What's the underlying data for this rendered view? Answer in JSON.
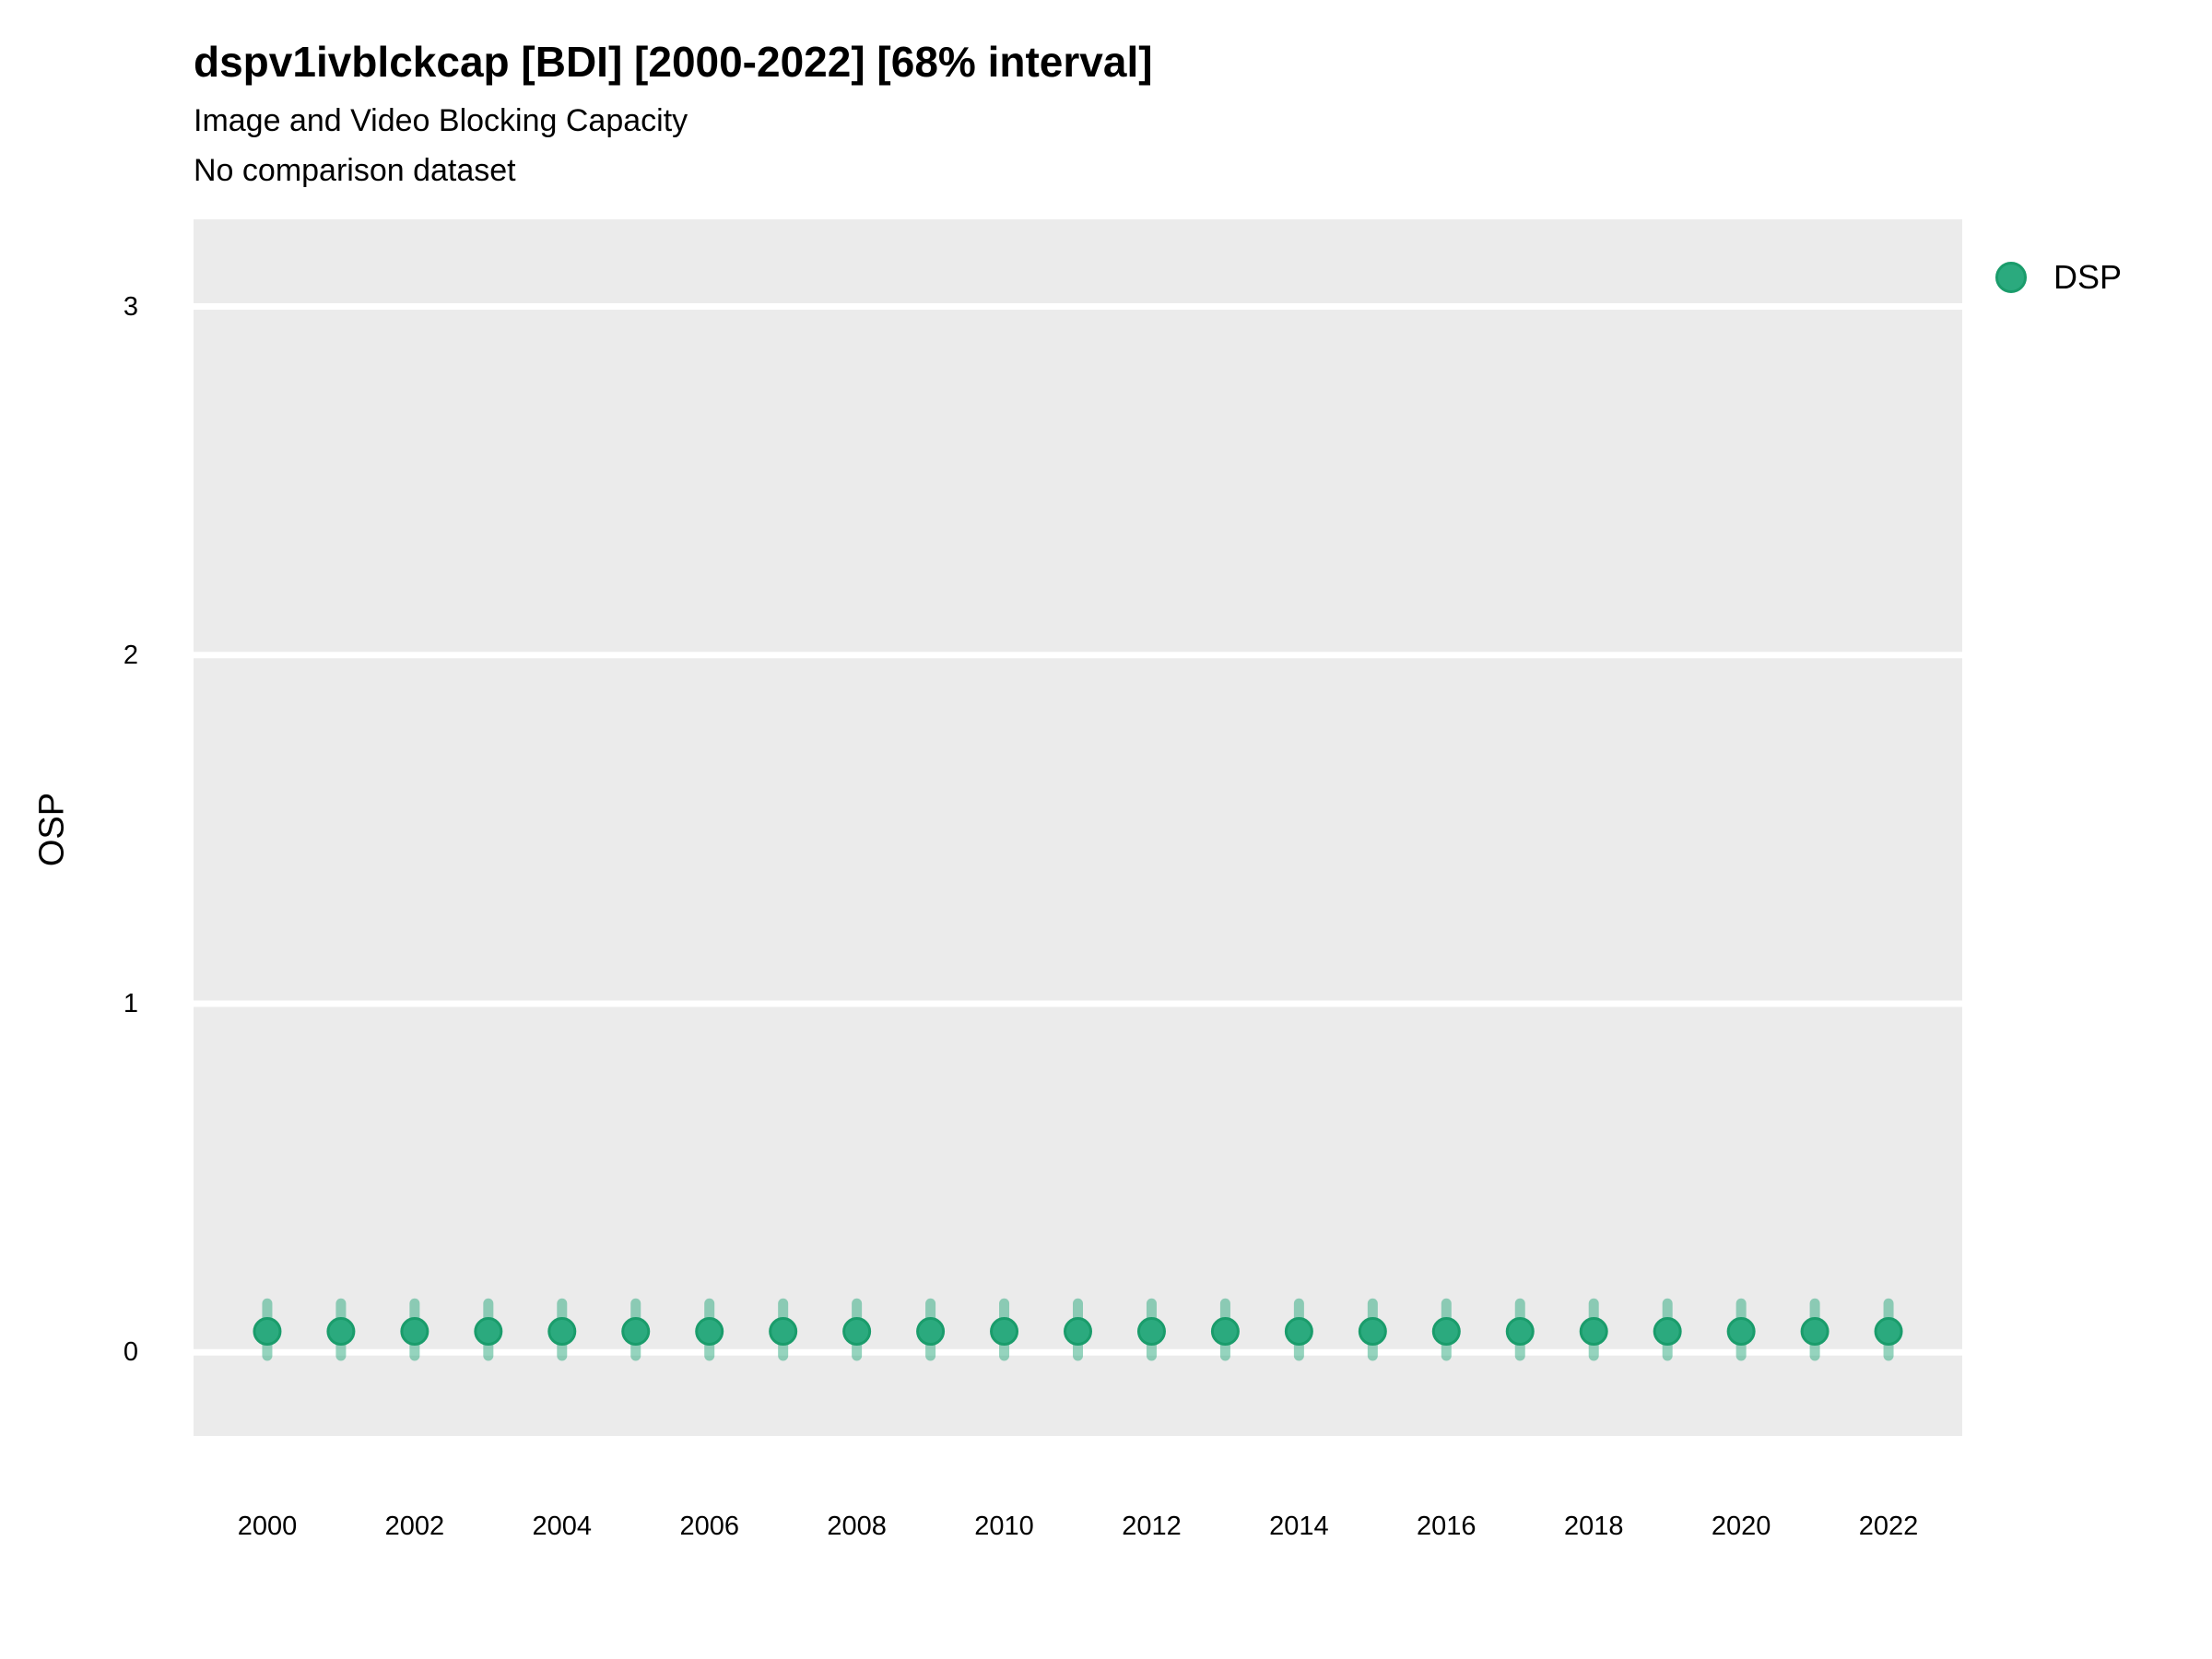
{
  "header": {
    "title": "dspv1ivblckcap [BDI] [2000-2022] [68% interval]",
    "subtitle": "Image and Video Blocking Capacity",
    "note": "No comparison dataset"
  },
  "legend": {
    "position": "right-top",
    "items": [
      {
        "label": "DSP",
        "color": "#2BAA7E"
      }
    ]
  },
  "chart_data": {
    "type": "scatter",
    "title": "dspv1ivblckcap [BDI] [2000-2022] [68% interval]",
    "subtitle": "Image and Video Blocking Capacity",
    "note": "No comparison dataset",
    "interval_label": "68% interval",
    "xlabel": "",
    "ylabel": "OSP",
    "x": [
      2000,
      2001,
      2002,
      2003,
      2004,
      2005,
      2006,
      2007,
      2008,
      2009,
      2010,
      2011,
      2012,
      2013,
      2014,
      2015,
      2016,
      2017,
      2018,
      2019,
      2020,
      2021,
      2022
    ],
    "series": [
      {
        "name": "DSP",
        "values": [
          0.06,
          0.06,
          0.06,
          0.06,
          0.06,
          0.06,
          0.06,
          0.06,
          0.06,
          0.06,
          0.06,
          0.06,
          0.06,
          0.06,
          0.06,
          0.06,
          0.06,
          0.06,
          0.06,
          0.06,
          0.06,
          0.06,
          0.06
        ],
        "interval_low": [
          -0.01,
          -0.01,
          -0.01,
          -0.01,
          -0.01,
          -0.01,
          -0.01,
          -0.01,
          -0.01,
          -0.01,
          -0.01,
          -0.01,
          -0.01,
          -0.01,
          -0.01,
          -0.01,
          -0.01,
          -0.01,
          -0.01,
          -0.01,
          -0.01,
          -0.01,
          -0.01
        ],
        "interval_high": [
          0.14,
          0.14,
          0.14,
          0.14,
          0.14,
          0.14,
          0.14,
          0.14,
          0.14,
          0.14,
          0.14,
          0.14,
          0.14,
          0.14,
          0.14,
          0.14,
          0.14,
          0.14,
          0.14,
          0.14,
          0.14,
          0.14,
          0.14
        ]
      }
    ],
    "x_ticks": [
      2000,
      2002,
      2004,
      2006,
      2008,
      2010,
      2012,
      2014,
      2016,
      2018,
      2020,
      2022
    ],
    "y_ticks": [
      0,
      1,
      2,
      3
    ],
    "xlim": [
      1999,
      2023
    ],
    "ylim": [
      -0.24,
      3.25
    ],
    "grid": {
      "horizontal": true,
      "vertical": false
    },
    "legend_position": "right-top",
    "colors": {
      "point_fill": "#2BAA7E",
      "point_stroke": "#1A9C6B",
      "errorbar": "rgba(43,170,126,0.5)",
      "panel_bg": "#EBEBEB",
      "gridline": "#FFFFFF"
    }
  }
}
